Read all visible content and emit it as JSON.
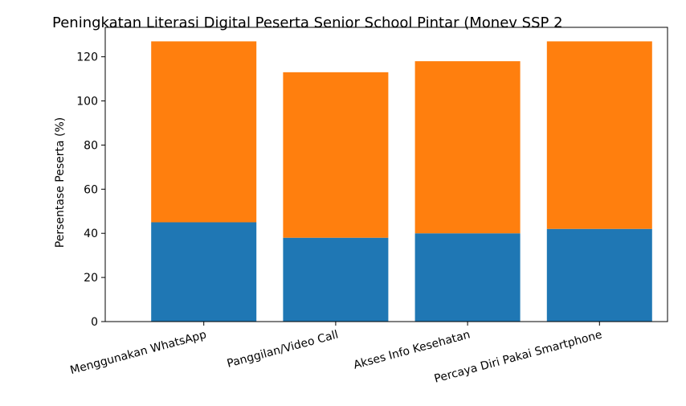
{
  "chart_data": {
    "type": "bar",
    "stacked": true,
    "title": "Peningkatan Literasi Digital Peserta Senior School Pintar (Monev SSP 2",
    "xlabel": "",
    "ylabel": "Persentase Peserta (%)",
    "categories": [
      "Menggunakan WhatsApp",
      "Panggilan/Video Call",
      "Akses Info Kesehatan",
      "Percaya Diri Pakai Smartphone"
    ],
    "series": [
      {
        "values": [
          45,
          38,
          40,
          42
        ],
        "color": "#1f77b4"
      },
      {
        "values": [
          82,
          75,
          78,
          85
        ],
        "color": "#ff7f0e"
      }
    ],
    "ylim": [
      0,
      133.35
    ],
    "yticks": [
      0,
      20,
      40,
      60,
      80,
      100,
      120
    ],
    "grid": false,
    "legend": "none"
  }
}
